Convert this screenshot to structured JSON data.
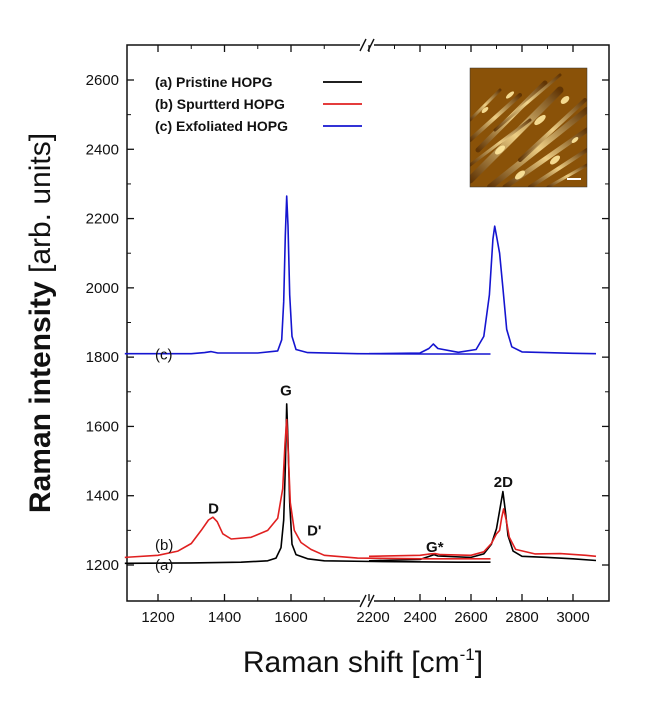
{
  "chart_data": {
    "type": "line",
    "xlabel": "Raman shift [cm",
    "xlabel_sup": "-1",
    "xlabel_end": "]",
    "ylabel_bold": "Raman intensity",
    "ylabel_rest": " [arb. units]",
    "x_ranges": [
      [
        1100,
        2200
      ],
      [
        2200,
        3090
      ]
    ],
    "xlim": [
      1100,
      3090
    ],
    "ylim": [
      1110,
      2720
    ],
    "x_ticks": [
      1200,
      1400,
      1600,
      2200,
      2400,
      2600,
      2800,
      3000
    ],
    "x_tick_labels": [
      "1200",
      "1400",
      "1600",
      "2200",
      "2400",
      "2600",
      "2800",
      "3000"
    ],
    "y_ticks": [
      1200,
      1400,
      1600,
      1800,
      2000,
      2200,
      2400,
      2600
    ],
    "y_tick_labels": [
      "1200",
      "1400",
      "1600",
      "1800",
      "2000",
      "2200",
      "2400",
      "2600"
    ],
    "axis_break": true,
    "grid": false,
    "legend_position": "top-left",
    "series": [
      {
        "name": "(a) Pristine HOPG",
        "color": "#000000",
        "points": [
          [
            1100,
            1205
          ],
          [
            1300,
            1206
          ],
          [
            1450,
            1208
          ],
          [
            1530,
            1212
          ],
          [
            1555,
            1220
          ],
          [
            1570,
            1250
          ],
          [
            1578,
            1330
          ],
          [
            1583,
            1480
          ],
          [
            1587,
            1665
          ],
          [
            1591,
            1560
          ],
          [
            1596,
            1380
          ],
          [
            1603,
            1260
          ],
          [
            1615,
            1230
          ],
          [
            1650,
            1218
          ],
          [
            1700,
            1212
          ],
          [
            1850,
            1210
          ],
          [
            2100,
            1208
          ],
          [
            2200,
            1208
          ],
          [
            2200,
            1212
          ],
          [
            2400,
            1216
          ],
          [
            2440,
            1226
          ],
          [
            2455,
            1230
          ],
          [
            2470,
            1226
          ],
          [
            2600,
            1222
          ],
          [
            2650,
            1232
          ],
          [
            2680,
            1260
          ],
          [
            2700,
            1305
          ],
          [
            2713,
            1360
          ],
          [
            2725,
            1412
          ],
          [
            2735,
            1355
          ],
          [
            2745,
            1285
          ],
          [
            2765,
            1240
          ],
          [
            2800,
            1225
          ],
          [
            2900,
            1222
          ],
          [
            3000,
            1218
          ],
          [
            3090,
            1213
          ]
        ]
      },
      {
        "name": "(b) Spurtterd HOPG",
        "color": "#e02020",
        "points": [
          [
            1100,
            1222
          ],
          [
            1200,
            1228
          ],
          [
            1260,
            1240
          ],
          [
            1300,
            1262
          ],
          [
            1330,
            1300
          ],
          [
            1352,
            1330
          ],
          [
            1365,
            1338
          ],
          [
            1378,
            1325
          ],
          [
            1395,
            1290
          ],
          [
            1420,
            1275
          ],
          [
            1480,
            1280
          ],
          [
            1530,
            1300
          ],
          [
            1560,
            1335
          ],
          [
            1575,
            1420
          ],
          [
            1582,
            1550
          ],
          [
            1587,
            1620
          ],
          [
            1592,
            1520
          ],
          [
            1598,
            1380
          ],
          [
            1610,
            1300
          ],
          [
            1630,
            1265
          ],
          [
            1660,
            1245
          ],
          [
            1700,
            1228
          ],
          [
            1800,
            1220
          ],
          [
            2000,
            1218
          ],
          [
            2200,
            1218
          ],
          [
            2200,
            1225
          ],
          [
            2400,
            1228
          ],
          [
            2440,
            1232
          ],
          [
            2460,
            1233
          ],
          [
            2480,
            1230
          ],
          [
            2600,
            1228
          ],
          [
            2650,
            1238
          ],
          [
            2680,
            1262
          ],
          [
            2700,
            1290
          ],
          [
            2712,
            1300
          ],
          [
            2720,
            1335
          ],
          [
            2728,
            1362
          ],
          [
            2738,
            1330
          ],
          [
            2750,
            1280
          ],
          [
            2775,
            1245
          ],
          [
            2850,
            1232
          ],
          [
            2950,
            1233
          ],
          [
            3050,
            1228
          ],
          [
            3090,
            1225
          ]
        ]
      },
      {
        "name": "(c) Exfoliated HOPG",
        "color": "#1515d0",
        "points": [
          [
            1100,
            1810
          ],
          [
            1300,
            1810
          ],
          [
            1340,
            1813
          ],
          [
            1360,
            1816
          ],
          [
            1380,
            1812
          ],
          [
            1500,
            1812
          ],
          [
            1560,
            1818
          ],
          [
            1572,
            1850
          ],
          [
            1578,
            1960
          ],
          [
            1583,
            2150
          ],
          [
            1587,
            2265
          ],
          [
            1591,
            2180
          ],
          [
            1596,
            1980
          ],
          [
            1603,
            1860
          ],
          [
            1615,
            1822
          ],
          [
            1650,
            1813
          ],
          [
            1800,
            1810
          ],
          [
            2000,
            1809
          ],
          [
            2200,
            1809
          ],
          [
            2200,
            1810
          ],
          [
            2400,
            1812
          ],
          [
            2435,
            1825
          ],
          [
            2452,
            1838
          ],
          [
            2470,
            1825
          ],
          [
            2550,
            1814
          ],
          [
            2620,
            1822
          ],
          [
            2650,
            1860
          ],
          [
            2672,
            1980
          ],
          [
            2686,
            2140
          ],
          [
            2693,
            2178
          ],
          [
            2700,
            2150
          ],
          [
            2712,
            2100
          ],
          [
            2725,
            2000
          ],
          [
            2740,
            1880
          ],
          [
            2760,
            1830
          ],
          [
            2800,
            1815
          ],
          [
            3000,
            1811
          ],
          [
            3090,
            1810
          ]
        ]
      }
    ],
    "annotations": [
      {
        "text": "D",
        "x": 1367,
        "y": 1348
      },
      {
        "text": "G",
        "x": 1585,
        "y": 1690
      },
      {
        "text": "D'",
        "x": 1670,
        "y": 1285
      },
      {
        "text": "G*",
        "x": 2458,
        "y": 1238
      },
      {
        "text": "2D",
        "x": 2727,
        "y": 1425
      }
    ],
    "curve_labels": [
      {
        "text": "(a)",
        "y": 1200
      },
      {
        "text": "(b)",
        "y": 1258
      },
      {
        "text": "(c)",
        "y": 1808
      }
    ]
  },
  "inset": {
    "description_icon": "afm-topography-image-icon",
    "base_color": "#7a4608",
    "highlight_color": "#ffe9a0"
  }
}
